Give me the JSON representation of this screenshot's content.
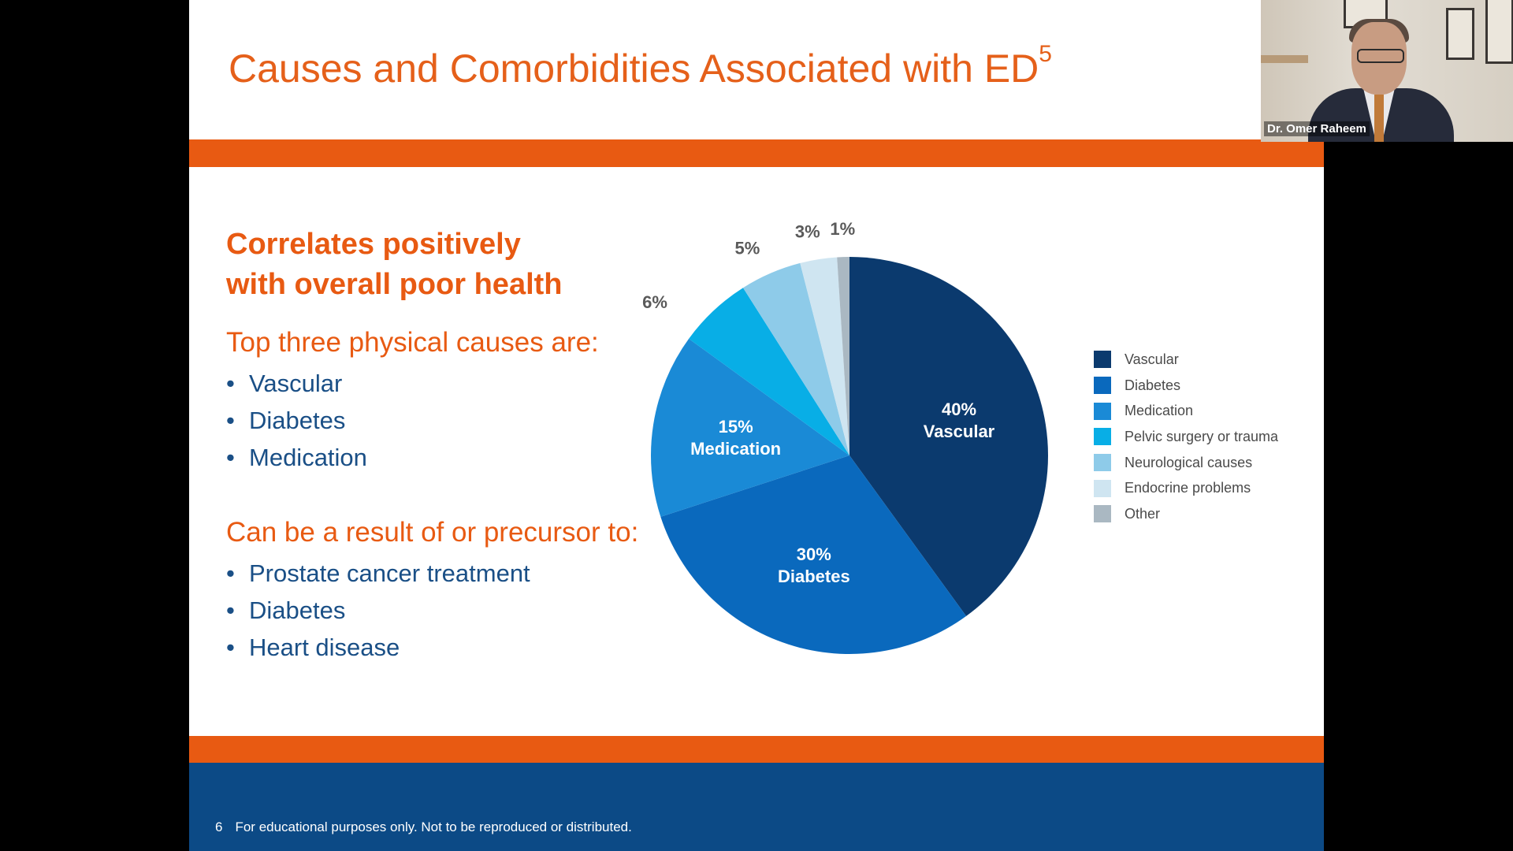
{
  "slide": {
    "title": "Causes and Comorbidities Associated with ED",
    "title_sup": "5",
    "headline_line1": "Correlates positively",
    "headline_line2": "with overall poor health",
    "causes_heading": "Top three physical causes are:",
    "causes": [
      "Vascular",
      "Diabetes",
      "Medication"
    ],
    "precursor_heading": "Can be a result of or precursor to:",
    "precursors": [
      "Prostate cancer treatment",
      "Diabetes",
      "Heart disease"
    ],
    "footer_page": "6",
    "footer_text": "For educational purposes only. Not to be reproduced or distributed."
  },
  "participant": {
    "name": "Dr. Omer Raheem"
  },
  "colors": {
    "orange": "#e85a12",
    "title_orange": "#e5601a",
    "navy": "#0c4a86",
    "text_blue": "#1a4f86"
  },
  "chart_data": {
    "type": "pie",
    "title": "",
    "legend_position": "right",
    "series": [
      {
        "slices": [
          {
            "label": "Vascular",
            "value": 40,
            "value_label": "40%",
            "color": "#0b3a6e",
            "inside": true
          },
          {
            "label": "Diabetes",
            "value": 30,
            "value_label": "30%",
            "color": "#0a69bd",
            "inside": true
          },
          {
            "label": "Medication",
            "value": 15,
            "value_label": "15%",
            "color": "#1a8ad6",
            "inside": true
          },
          {
            "label": "Pelvic surgery or trauma",
            "value": 6,
            "value_label": "6%",
            "color": "#08aee6",
            "inside": false
          },
          {
            "label": "Neurological causes",
            "value": 5,
            "value_label": "5%",
            "color": "#8ecbe9",
            "inside": false
          },
          {
            "label": "Endocrine problems",
            "value": 3,
            "value_label": "3%",
            "color": "#cfe5f1",
            "inside": false
          },
          {
            "label": "Other",
            "value": 1,
            "value_label": "1%",
            "color": "#aab8c2",
            "inside": false
          }
        ]
      }
    ]
  }
}
